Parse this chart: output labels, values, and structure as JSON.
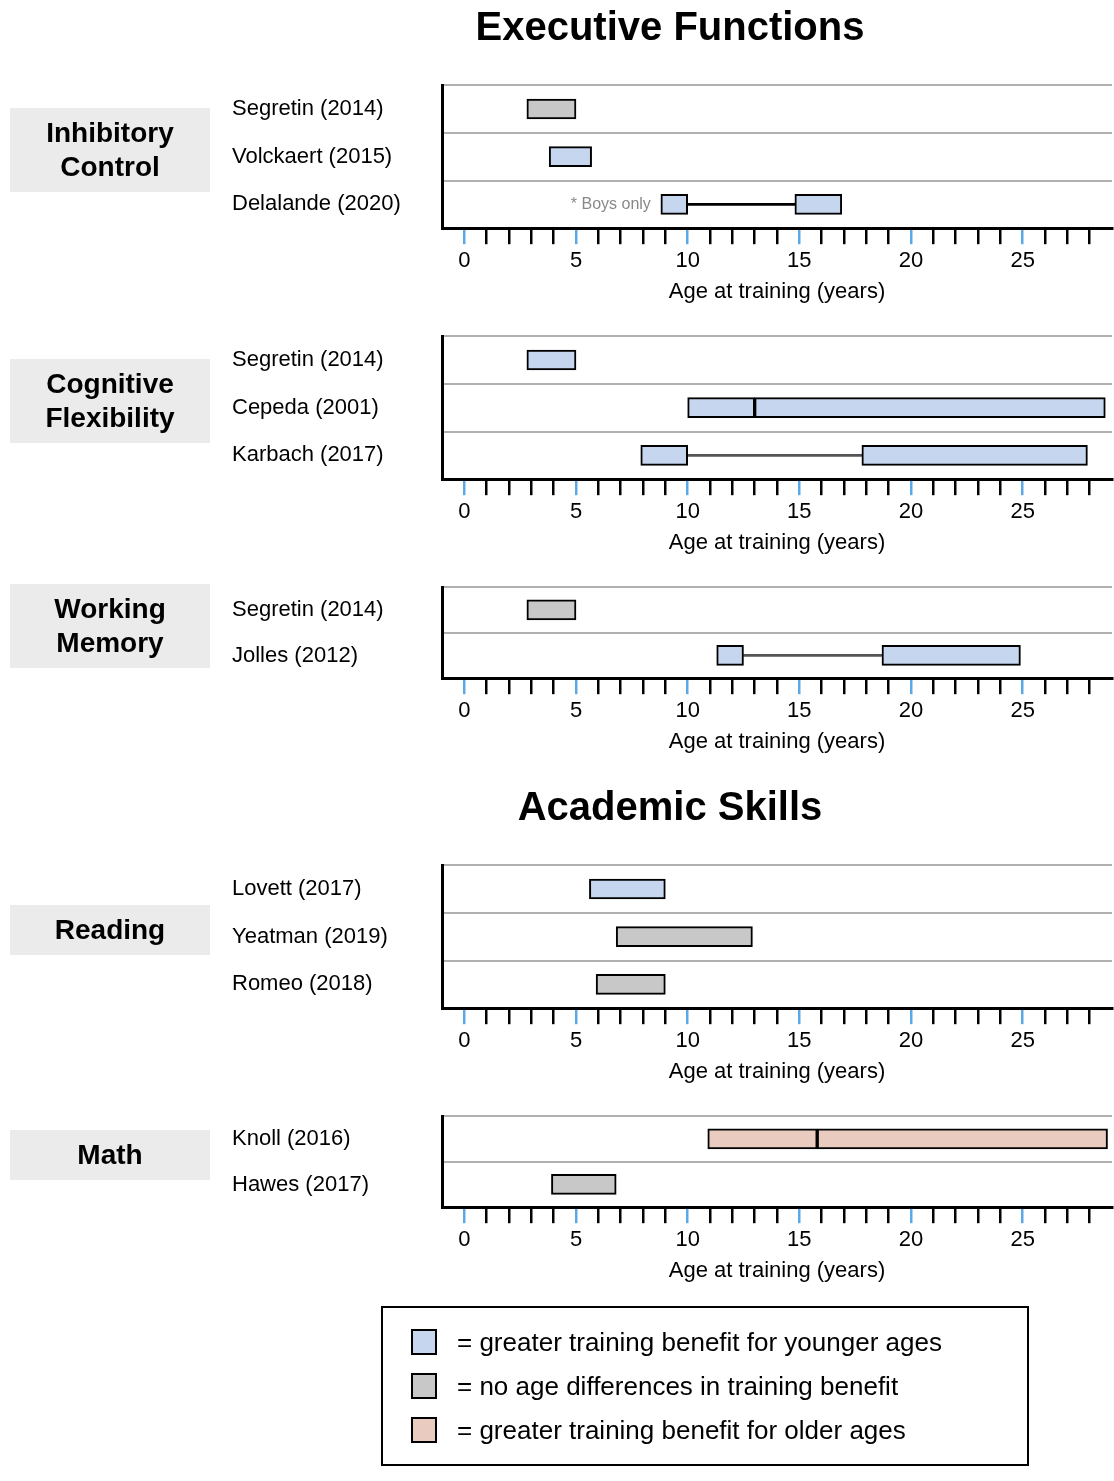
{
  "chart_data": [
    {
      "type": "bar",
      "orientation": "horizontal",
      "title": "Executive Functions",
      "ylabel": "Inhibitory Control",
      "xlabel": "Age at training (years)",
      "categories": [
        "Segretin (2014)",
        "Volckaert (2015)",
        "Delalande (2020)"
      ],
      "series": [
        {
          "color": "#c8c8c8",
          "base": [
            2.8,
            null,
            null
          ],
          "values": [
            2.2,
            null,
            null
          ]
        },
        {
          "color": "#c6d6ee",
          "base": [
            null,
            3.8,
            8.8
          ],
          "values": [
            null,
            1.9,
            1.2
          ]
        },
        {
          "color": "#c6d6ee",
          "base": [
            null,
            null,
            14.8
          ],
          "values": [
            null,
            null,
            2.1
          ]
        },
        {
          "color": "#000000",
          "line_style": "solid",
          "base": [
            null,
            null,
            10
          ],
          "values": [
            null,
            null,
            4.8
          ]
        }
      ],
      "annotations": [
        {
          "text": "* Boys only",
          "x": 8.8,
          "y": "Delalande (2020)"
        }
      ],
      "xlim": [
        -1,
        29
      ],
      "xticks": [
        0,
        {
          "value": 1,
          "label": null
        },
        {
          "value": 2,
          "label": null
        },
        {
          "value": 3,
          "label": null
        },
        {
          "value": 4,
          "label": null
        },
        5,
        {
          "value": 6,
          "label": null
        },
        {
          "value": 7,
          "label": null
        },
        {
          "value": 8,
          "label": null
        },
        {
          "value": 9,
          "label": null
        },
        10,
        {
          "value": 11,
          "label": null
        },
        {
          "value": 12,
          "label": null
        },
        {
          "value": 13,
          "label": null
        },
        {
          "value": 14,
          "label": null
        },
        15,
        {
          "value": 16,
          "label": null
        },
        {
          "value": 17,
          "label": null
        },
        {
          "value": 18,
          "label": null
        },
        {
          "value": 19,
          "label": null
        },
        20,
        {
          "value": 21,
          "label": null
        },
        {
          "value": 22,
          "label": null
        },
        {
          "value": 23,
          "label": null
        },
        {
          "value": 24,
          "label": null
        },
        25,
        {
          "value": 26,
          "label": null
        },
        {
          "value": 27,
          "label": null
        },
        {
          "value": 28,
          "label": null
        }
      ],
      "grid": "y"
    },
    {
      "type": "bar",
      "orientation": "horizontal",
      "ylabel": "Cognitive Flexibility",
      "xlabel": "Age at training (years)",
      "categories": [
        "Segretin (2014)",
        "Cepeda (2001)",
        "Karbach (2017)"
      ],
      "series": [
        {
          "color": "#c6d6ee",
          "base": [
            2.8,
            10,
            7.9
          ],
          "values": [
            2.2,
            3,
            2.1
          ]
        },
        {
          "color": "#c6d6ee",
          "base": [
            null,
            13,
            17.8
          ],
          "values": [
            null,
            15.7,
            10.1
          ]
        },
        {
          "color": "#555555",
          "line_style": "solid",
          "base": [
            null,
            null,
            10
          ],
          "values": [
            null,
            null,
            7.8
          ]
        }
      ],
      "xlim": [
        -1,
        29
      ],
      "xticks": [
        0,
        {
          "value": 1,
          "label": null
        },
        {
          "value": 2,
          "label": null
        },
        {
          "value": 3,
          "label": null
        },
        {
          "value": 4,
          "label": null
        },
        5,
        {
          "value": 6,
          "label": null
        },
        {
          "value": 7,
          "label": null
        },
        {
          "value": 8,
          "label": null
        },
        {
          "value": 9,
          "label": null
        },
        10,
        {
          "value": 11,
          "label": null
        },
        {
          "value": 12,
          "label": null
        },
        {
          "value": 13,
          "label": null
        },
        {
          "value": 14,
          "label": null
        },
        15,
        {
          "value": 16,
          "label": null
        },
        {
          "value": 17,
          "label": null
        },
        {
          "value": 18,
          "label": null
        },
        {
          "value": 19,
          "label": null
        },
        20,
        {
          "value": 21,
          "label": null
        },
        {
          "value": 22,
          "label": null
        },
        {
          "value": 23,
          "label": null
        },
        {
          "value": 24,
          "label": null
        },
        25,
        {
          "value": 26,
          "label": null
        },
        {
          "value": 27,
          "label": null
        },
        {
          "value": 28,
          "label": null
        }
      ],
      "grid": "y"
    },
    {
      "type": "bar",
      "orientation": "horizontal",
      "ylabel": "Working Memory",
      "xlabel": "Age at training (years)",
      "categories": [
        "Segretin (2014)",
        "Jolles (2012)"
      ],
      "series": [
        {
          "color": "#c8c8c8",
          "base": [
            2.8,
            null
          ],
          "values": [
            2.2,
            null
          ]
        },
        {
          "color": "#c6d6ee",
          "base": [
            null,
            11.3
          ],
          "values": [
            null,
            1.2
          ]
        },
        {
          "color": "#c6d6ee",
          "base": [
            null,
            18.7
          ],
          "values": [
            null,
            6.2
          ]
        },
        {
          "color": "#555555",
          "line_style": "solid",
          "base": [
            null,
            12.5
          ],
          "values": [
            null,
            6.2
          ]
        }
      ],
      "xlim": [
        -1,
        29
      ],
      "xticks": [
        0,
        {
          "value": 1,
          "label": null
        },
        {
          "value": 2,
          "label": null
        },
        {
          "value": 3,
          "label": null
        },
        {
          "value": 4,
          "label": null
        },
        5,
        {
          "value": 6,
          "label": null
        },
        {
          "value": 7,
          "label": null
        },
        {
          "value": 8,
          "label": null
        },
        {
          "value": 9,
          "label": null
        },
        10,
        {
          "value": 11,
          "label": null
        },
        {
          "value": 12,
          "label": null
        },
        {
          "value": 13,
          "label": null
        },
        {
          "value": 14,
          "label": null
        },
        15,
        {
          "value": 16,
          "label": null
        },
        {
          "value": 17,
          "label": null
        },
        {
          "value": 18,
          "label": null
        },
        {
          "value": 19,
          "label": null
        },
        20,
        {
          "value": 21,
          "label": null
        },
        {
          "value": 22,
          "label": null
        },
        {
          "value": 23,
          "label": null
        },
        {
          "value": 24,
          "label": null
        },
        25,
        {
          "value": 26,
          "label": null
        },
        {
          "value": 27,
          "label": null
        },
        {
          "value": 28,
          "label": null
        }
      ],
      "grid": "y"
    },
    {
      "type": "bar",
      "orientation": "horizontal",
      "title": "Academic Skills",
      "ylabel": "Reading",
      "xlabel": "Age at training (years)",
      "categories": [
        "Lovett (2017)",
        "Yeatman (2019)",
        "Romeo (2018)"
      ],
      "series": [
        {
          "color": "#c6d6ee",
          "base": [
            5.6,
            null,
            null
          ],
          "values": [
            3.4,
            null,
            null
          ]
        },
        {
          "color": "#c8c8c8",
          "base": [
            null,
            6.8,
            5.9
          ],
          "values": [
            null,
            6.1,
            3.1
          ]
        }
      ],
      "xlim": [
        -1,
        29
      ],
      "xticks": [
        0,
        {
          "value": 1,
          "label": null
        },
        {
          "value": 2,
          "label": null
        },
        {
          "value": 3,
          "label": null
        },
        {
          "value": 4,
          "label": null
        },
        5,
        {
          "value": 6,
          "label": null
        },
        {
          "value": 7,
          "label": null
        },
        {
          "value": 8,
          "label": null
        },
        {
          "value": 9,
          "label": null
        },
        10,
        {
          "value": 11,
          "label": null
        },
        {
          "value": 12,
          "label": null
        },
        {
          "value": 13,
          "label": null
        },
        {
          "value": 14,
          "label": null
        },
        15,
        {
          "value": 16,
          "label": null
        },
        {
          "value": 17,
          "label": null
        },
        {
          "value": 18,
          "label": null
        },
        {
          "value": 19,
          "label": null
        },
        20,
        {
          "value": 21,
          "label": null
        },
        {
          "value": 22,
          "label": null
        },
        {
          "value": 23,
          "label": null
        },
        {
          "value": 24,
          "label": null
        },
        25,
        {
          "value": 26,
          "label": null
        },
        {
          "value": 27,
          "label": null
        },
        {
          "value": 28,
          "label": null
        }
      ],
      "grid": "y"
    },
    {
      "type": "bar",
      "orientation": "horizontal",
      "ylabel": "Math",
      "xlabel": "Age at training (years)",
      "categories": [
        "Knoll (2016)",
        "Hawes (2017)"
      ],
      "series": [
        {
          "name": "= greater training benefit for younger ages",
          "color": "#c6d6ee",
          "base": [
            null,
            null
          ],
          "values": [
            null,
            null
          ]
        },
        {
          "name": "= no age differences in training benefit",
          "color": "#c8c8c8",
          "base": [
            null,
            3.9
          ],
          "values": [
            null,
            2.9
          ]
        },
        {
          "name": "= greater training benefit for older ages",
          "color": "#eacbc0",
          "base": [
            10.9,
            null
          ],
          "values": [
            4.9,
            null
          ]
        },
        {
          "color": "#eacbc0",
          "base": [
            15.8,
            null
          ],
          "values": [
            13,
            null
          ]
        }
      ],
      "legend": "bottom",
      "xlim": [
        -1,
        29
      ],
      "xticks": [
        0,
        {
          "value": 1,
          "label": null
        },
        {
          "value": 2,
          "label": null
        },
        {
          "value": 3,
          "label": null
        },
        {
          "value": 4,
          "label": null
        },
        5,
        {
          "value": 6,
          "label": null
        },
        {
          "value": 7,
          "label": null
        },
        {
          "value": 8,
          "label": null
        },
        {
          "value": 9,
          "label": null
        },
        10,
        {
          "value": 11,
          "label": null
        },
        {
          "value": 12,
          "label": null
        },
        {
          "value": 13,
          "label": null
        },
        {
          "value": 14,
          "label": null
        },
        15,
        {
          "value": 16,
          "label": null
        },
        {
          "value": 17,
          "label": null
        },
        {
          "value": 18,
          "label": null
        },
        {
          "value": 19,
          "label": null
        },
        20,
        {
          "value": 21,
          "label": null
        },
        {
          "value": 22,
          "label": null
        },
        {
          "value": 23,
          "label": null
        },
        {
          "value": 24,
          "label": null
        },
        25,
        {
          "value": 26,
          "label": null
        },
        {
          "value": 27,
          "label": null
        },
        {
          "value": 28,
          "label": null
        }
      ],
      "grid": "y"
    }
  ]
}
